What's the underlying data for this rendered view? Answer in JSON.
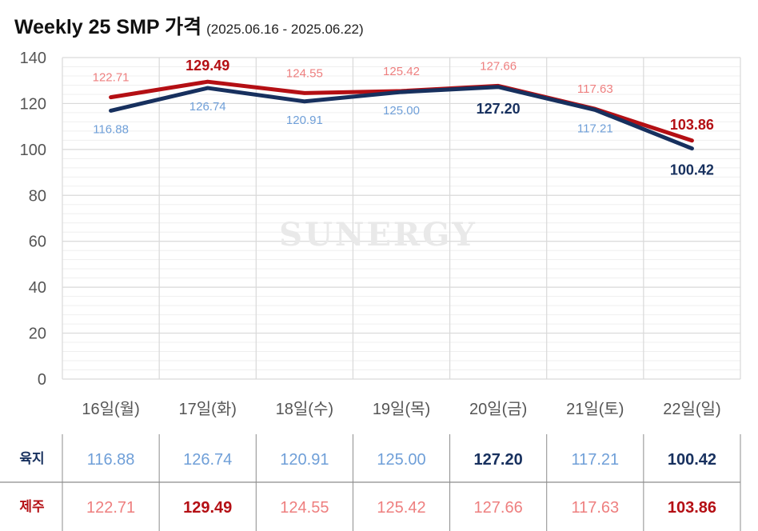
{
  "header": {
    "title": "Weekly 25 SMP 가격",
    "subtitle": "(2025.06.16 - 2025.06.22)"
  },
  "watermark": "SUNERGY",
  "colors": {
    "mainland_line": "#17305e",
    "mainland_label": "#6f9fd8",
    "jeju_line": "#b40f14",
    "jeju_label": "#ee7f7f",
    "grid": "#d9d9d9"
  },
  "chart_data": {
    "type": "line",
    "categories": [
      "16일(월)",
      "17일(화)",
      "18일(수)",
      "19일(목)",
      "20일(금)",
      "21일(토)",
      "22일(일)"
    ],
    "ylim": [
      0,
      140
    ],
    "yticks": [
      0,
      20,
      40,
      60,
      80,
      100,
      120,
      140
    ],
    "grid": true,
    "series": [
      {
        "name": "육지",
        "values": [
          116.88,
          126.74,
          120.91,
          125.0,
          127.2,
          117.21,
          100.42
        ],
        "labels": [
          "116.88",
          "126.74",
          "120.91",
          "125.00",
          "127.20",
          "117.21",
          "100.42"
        ],
        "emphasis": [
          false,
          false,
          false,
          false,
          true,
          false,
          true
        ]
      },
      {
        "name": "제주",
        "values": [
          122.71,
          129.49,
          124.55,
          125.42,
          127.66,
          117.63,
          103.86
        ],
        "labels": [
          "122.71",
          "129.49",
          "124.55",
          "125.42",
          "127.66",
          "117.63",
          "103.86"
        ],
        "emphasis": [
          false,
          true,
          false,
          false,
          false,
          false,
          true
        ]
      }
    ]
  }
}
